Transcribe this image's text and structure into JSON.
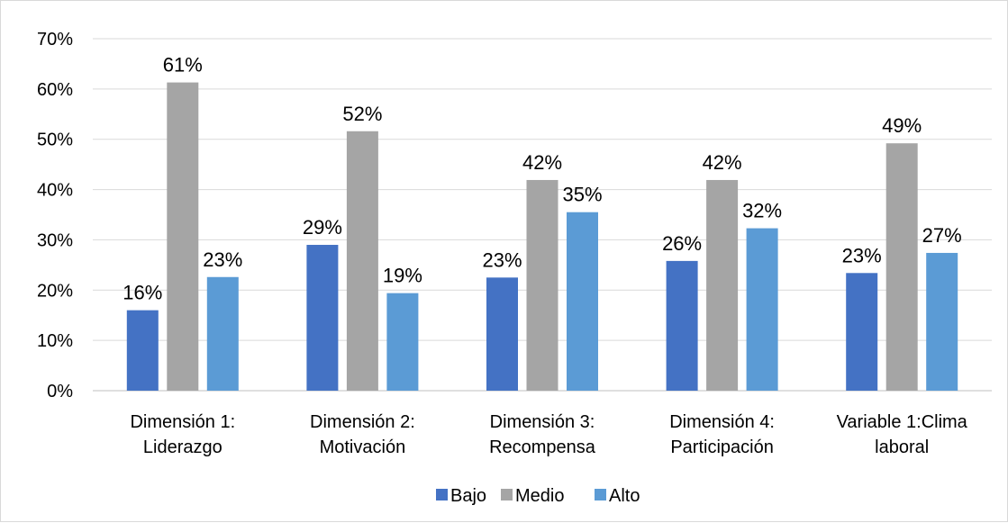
{
  "chart_data": {
    "type": "bar",
    "title": "",
    "xlabel": "",
    "ylabel": "",
    "ylim": [
      0,
      0.7
    ],
    "yticks": [
      "0%",
      "10%",
      "20%",
      "30%",
      "40%",
      "50%",
      "60%",
      "70%"
    ],
    "grid": true,
    "legend_position": "bottom",
    "categories": [
      [
        "Dimensión 1:",
        "Liderazgo"
      ],
      [
        "Dimensión 2:",
        "Motivación"
      ],
      [
        "Dimensión 3:",
        "Recompensa"
      ],
      [
        "Dimensión 4:",
        "Participación"
      ],
      [
        "Variable 1:Clima",
        "laboral"
      ]
    ],
    "series": [
      {
        "name": "Bajo",
        "color": "#4472c4",
        "values": [
          0.16,
          0.29,
          0.225,
          0.258,
          0.234
        ],
        "labels": [
          "16%",
          "29%",
          "23%",
          "26%",
          "23%"
        ]
      },
      {
        "name": "Medio",
        "color": "#a5a5a5",
        "values": [
          0.613,
          0.516,
          0.419,
          0.419,
          0.492
        ],
        "labels": [
          "61%",
          "52%",
          "42%",
          "42%",
          "49%"
        ]
      },
      {
        "name": "Alto",
        "color": "#5b9bd5",
        "values": [
          0.226,
          0.194,
          0.355,
          0.323,
          0.274
        ],
        "labels": [
          "23%",
          "19%",
          "35%",
          "32%",
          "27%"
        ]
      }
    ]
  }
}
